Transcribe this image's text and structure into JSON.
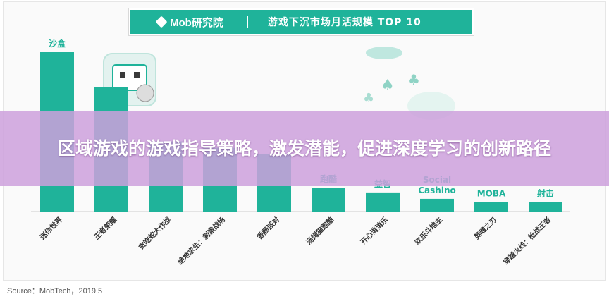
{
  "header": {
    "brand": "Mob研究院",
    "title": "游戏下沉市场月活规模 TOP 10"
  },
  "banner": {
    "text": "区域游戏的游戏指导策略，激发潜能，促进深度学习的创新路径"
  },
  "source": "Source：MobTech，2019.5",
  "colors": {
    "accent": "#1fb39a",
    "bar": "#1fb39a",
    "category_label": "#1fb39a",
    "banner": "#cda0dc"
  },
  "chart_data": {
    "type": "bar",
    "title": "游戏下沉市场月活规模 TOP 10",
    "xlabel": "",
    "ylabel": "",
    "categories": [
      "迷你世界",
      "王者荣耀",
      "贪吃蛇大作战",
      "绝地求生：刺激战场",
      "香肠派对",
      "汤姆猫跑酷",
      "开心消消乐",
      "欢乐斗地主",
      "英魂之刃",
      "穿越火线：枪战王者"
    ],
    "values": [
      100,
      78,
      44,
      40,
      36,
      15,
      12,
      8,
      6,
      6
    ],
    "genre_labels": [
      "沙盒",
      "",
      "",
      "",
      "",
      "跑酷",
      "益智",
      "Social Cashino",
      "MOBA",
      "射击"
    ],
    "ylim": [
      0,
      100
    ],
    "grid": false,
    "legend": "none"
  }
}
